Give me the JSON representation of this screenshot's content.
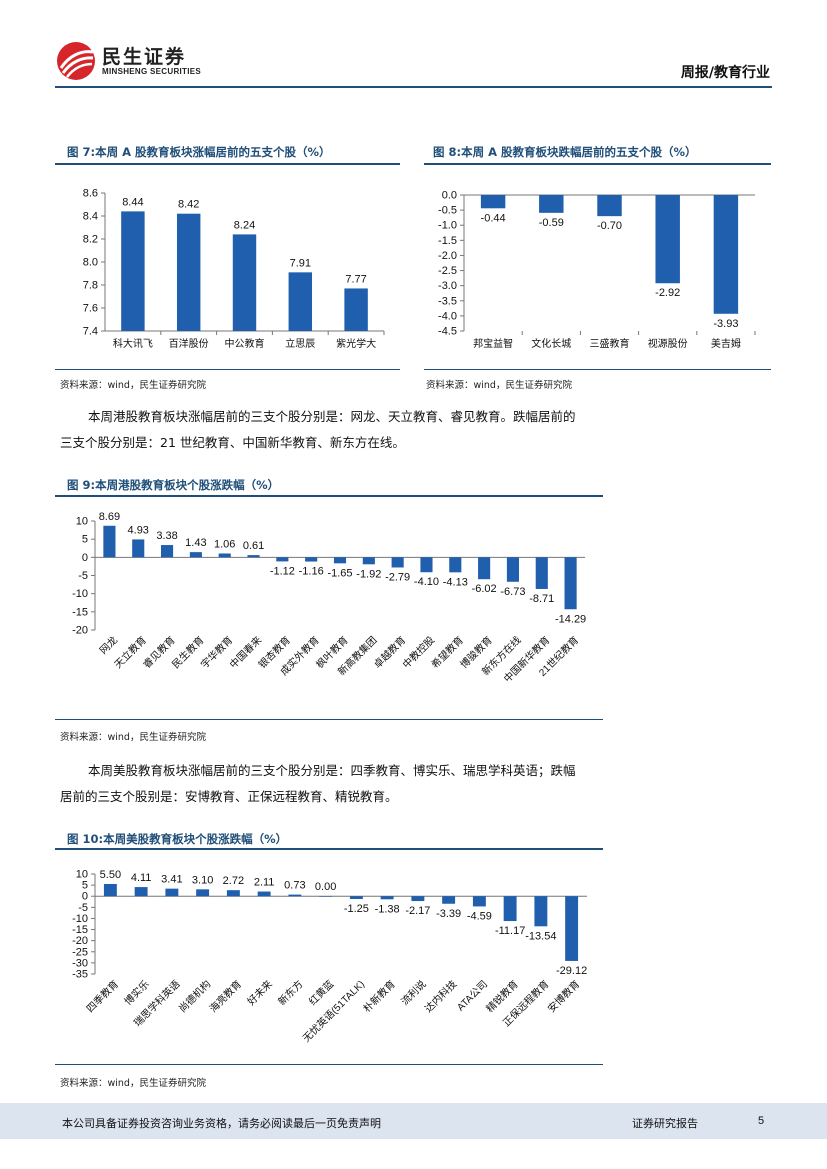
{
  "header": {
    "brand_cn": "民生证券",
    "brand_en": "MINSHENG SECURITIES",
    "section": "周报/教育行业"
  },
  "fig7": {
    "title": "图 7:本周 A 股教育板块涨幅居前的五支个股（%）",
    "source": "资料来源：wind，民生证券研究院"
  },
  "fig8": {
    "title": "图 8:本周 A 股教育板块跌幅居前的五支个股（%）",
    "source": "资料来源：wind，民生证券研究院"
  },
  "para1": {
    "line1": "本周港股教育板块涨幅居前的三支个股分别是：网龙、天立教育、睿见教育。跌幅居前的",
    "line2": "三支个股分别是：21 世纪教育、中国新华教育、新东方在线。"
  },
  "fig9": {
    "title": "图 9:本周港股教育板块个股涨跌幅（%）",
    "source": "资料来源：wind，民生证券研究院"
  },
  "para2": {
    "line1": "本周美股教育板块涨幅居前的三支个股分别是：四季教育、博实乐、瑞思学科英语；跌幅",
    "line2": "居前的三支个股别是：安博教育、正保远程教育、精锐教育。"
  },
  "fig10": {
    "title": "图 10:本周美股教育板块个股涨跌幅（%）",
    "source": "资料来源：wind，民生证券研究院"
  },
  "footer": {
    "disclaimer": "本公司具备证券投资咨询业务资格，请务必阅读最后一页免责声明",
    "report_type": "证券研究报告",
    "page": "5"
  },
  "colors": {
    "bar": "#1f5fad",
    "accent": "#1f4e79",
    "logo_red": "#d6262c"
  },
  "chart_data": [
    {
      "id": "fig7",
      "type": "bar",
      "categories": [
        "科大讯飞",
        "百洋股份",
        "中公教育",
        "立思辰",
        "紫光学大"
      ],
      "values": [
        8.44,
        8.42,
        8.24,
        7.91,
        7.77
      ],
      "labels": [
        "8.44",
        "8.42",
        "8.24",
        "7.91",
        "7.77"
      ],
      "ylim": [
        7.4,
        8.6
      ],
      "yticks": [
        "7.4",
        "7.6",
        "7.8",
        "8.0",
        "8.2",
        "8.4",
        "8.6"
      ]
    },
    {
      "id": "fig8",
      "type": "bar",
      "categories": [
        "邦宝益智",
        "文化长城",
        "三盛教育",
        "视源股份",
        "美吉姆"
      ],
      "values": [
        -0.44,
        -0.59,
        -0.7,
        -2.92,
        -3.93
      ],
      "labels": [
        "-0.44",
        "-0.59",
        "-0.70",
        "-2.92",
        "-3.93"
      ],
      "ylim": [
        -4.5,
        0.0
      ],
      "yticks": [
        "-4.5",
        "-4.0",
        "-3.5",
        "-3.0",
        "-2.5",
        "-2.0",
        "-1.5",
        "-1.0",
        "-0.5",
        "0.0"
      ]
    },
    {
      "id": "fig9",
      "type": "bar",
      "categories": [
        "网龙",
        "天立教育",
        "睿见教育",
        "民生教育",
        "宇华教育",
        "中国春来",
        "银杏教育",
        "成实外教育",
        "枫叶教育",
        "新高教集团",
        "卓越教育",
        "中教控股",
        "希望教育",
        "博骏教育",
        "新东方在线",
        "中国新华教育",
        "21世纪教育"
      ],
      "values": [
        8.69,
        4.93,
        3.38,
        1.43,
        1.06,
        0.61,
        -1.12,
        -1.16,
        -1.65,
        -1.92,
        -2.79,
        -4.1,
        -4.13,
        -6.02,
        -6.73,
        -8.71,
        -14.29
      ],
      "labels": [
        "8.69",
        "4.93",
        "3.38",
        "1.43",
        "1.06",
        "0.61",
        "-1.12",
        "-1.16",
        "-1.65",
        "-1.92",
        "-2.79",
        "-4.10",
        "-4.13",
        "-6.02",
        "-6.73",
        "-8.71",
        "-14.29"
      ],
      "ylim": [
        -20,
        10
      ],
      "yticks": [
        "-20",
        "-15",
        "-10",
        "-5",
        "0",
        "5",
        "10"
      ]
    },
    {
      "id": "fig10",
      "type": "bar",
      "categories": [
        "四季教育",
        "博实乐",
        "瑞思学科英语",
        "尚德机构",
        "海亮教育",
        "好未来",
        "新东方",
        "红黄蓝",
        "无忧英语(51TALK)",
        "朴新教育",
        "流利说",
        "达内科技",
        "ATA公司",
        "精锐教育",
        "正保远程教育",
        "安博教育"
      ],
      "values": [
        5.5,
        4.11,
        3.41,
        3.1,
        2.72,
        2.11,
        0.73,
        0.0,
        -1.25,
        -1.38,
        -2.17,
        -3.39,
        -4.59,
        -11.17,
        -13.54,
        -29.12
      ],
      "labels": [
        "5.50",
        "4.11",
        "3.41",
        "3.10",
        "2.72",
        "2.11",
        "0.73",
        "0.00",
        "-1.25",
        "-1.38",
        "-2.17",
        "-3.39",
        "-4.59",
        "-11.17",
        "-13.54",
        "-29.12"
      ],
      "ylim": [
        -35,
        10
      ],
      "yticks": [
        "-35",
        "-30",
        "-25",
        "-20",
        "-15",
        "-10",
        "-5",
        "0",
        "5",
        "10"
      ]
    }
  ]
}
